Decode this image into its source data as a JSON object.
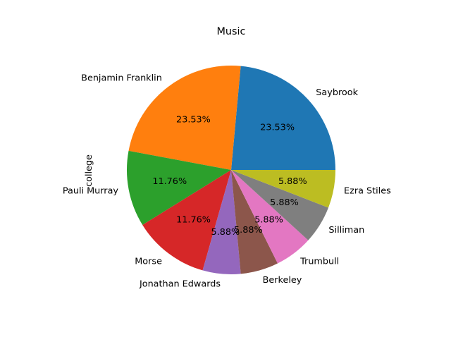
{
  "chart_data": {
    "type": "pie",
    "title": "Music",
    "ylabel": "college",
    "xlabel": "",
    "legend": "none",
    "start_angle_deg": 0,
    "direction": "counterclockwise",
    "slices": [
      {
        "label": "Saybrook",
        "value": 23.53,
        "pct_label": "23.53%",
        "color": "#1f77b4"
      },
      {
        "label": "Benjamin Franklin",
        "value": 23.53,
        "pct_label": "23.53%",
        "color": "#ff7f0e"
      },
      {
        "label": "Pauli Murray",
        "value": 11.76,
        "pct_label": "11.76%",
        "color": "#2ca02c"
      },
      {
        "label": "Morse",
        "value": 11.76,
        "pct_label": "11.76%",
        "color": "#d62728"
      },
      {
        "label": "Jonathan Edwards",
        "value": 5.88,
        "pct_label": "5.88%",
        "color": "#9467bd"
      },
      {
        "label": "Berkeley",
        "value": 5.88,
        "pct_label": "5.88%",
        "color": "#8c564b"
      },
      {
        "label": "Trumbull",
        "value": 5.88,
        "pct_label": "5.88%",
        "color": "#e377c2"
      },
      {
        "label": "Silliman",
        "value": 5.88,
        "pct_label": "5.88%",
        "color": "#7f7f7f"
      },
      {
        "label": "Ezra Stiles",
        "value": 5.88,
        "pct_label": "5.88%",
        "color": "#bcbd22"
      }
    ]
  }
}
